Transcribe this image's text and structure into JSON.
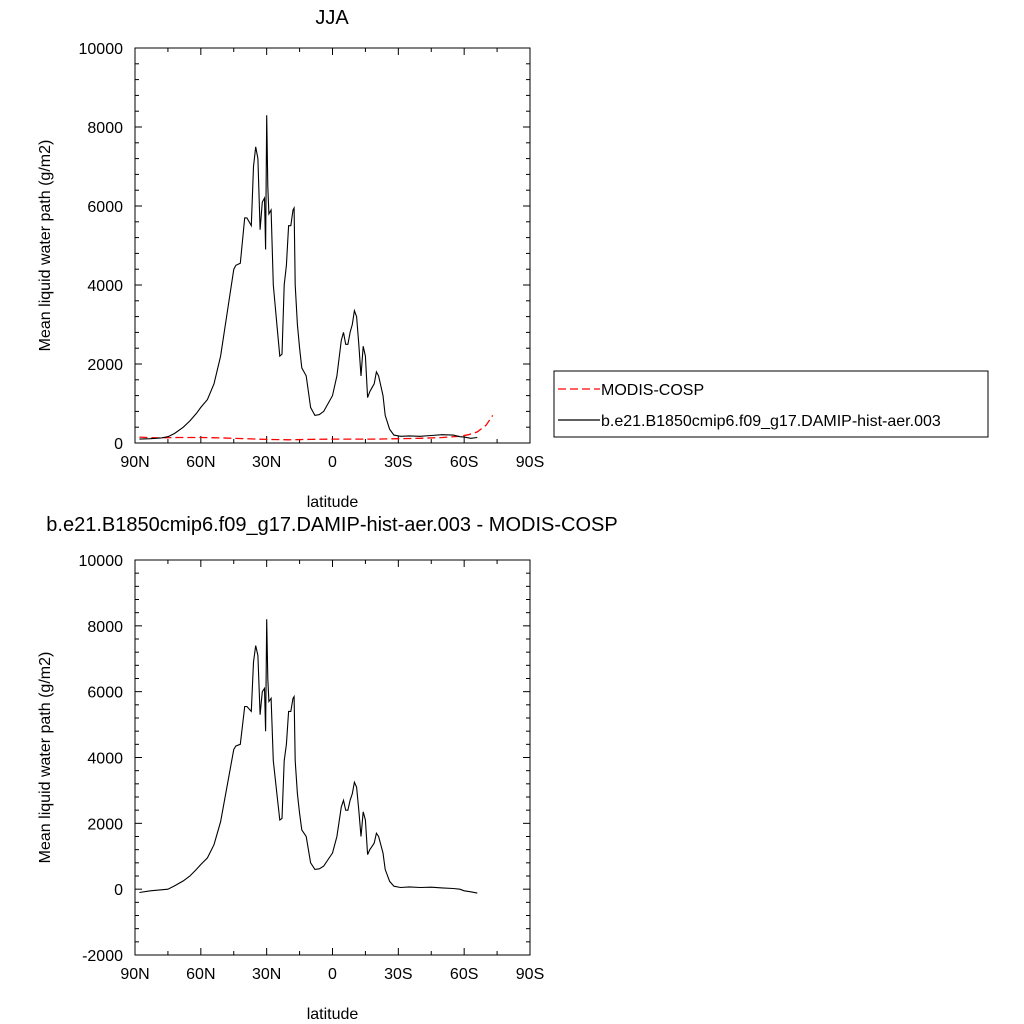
{
  "chart_data": [
    {
      "type": "line",
      "title": "JJA",
      "xlabel": "latitude",
      "ylabel": "Mean liquid water path (g/m2)",
      "xlim": [
        90,
        -90
      ],
      "ylim": [
        0,
        10000
      ],
      "x_ticks": [
        90,
        60,
        30,
        0,
        -30,
        -60,
        -90
      ],
      "x_tick_labels": [
        "90N",
        "60N",
        "30N",
        "0",
        "30S",
        "60S",
        "90S"
      ],
      "y_ticks": [
        0,
        2000,
        4000,
        6000,
        8000,
        10000
      ],
      "y_tick_labels": [
        "0",
        "2000",
        "4000",
        "6000",
        "8000",
        "10000"
      ],
      "grid": false,
      "legend": {
        "position": "right",
        "entries": [
          {
            "label": "MODIS-COSP",
            "color": "#ff0000",
            "dash": "dashed"
          },
          {
            "label": "b.e21.B1850cmip6.f09_g17.DAMIP-hist-aer.003",
            "color": "#000000",
            "dash": "solid"
          }
        ]
      },
      "series": [
        {
          "name": "MODIS-COSP",
          "color": "#ff0000",
          "dash": "dashed",
          "x": [
            88,
            80,
            70,
            60,
            50,
            40,
            30,
            20,
            10,
            0,
            -10,
            -20,
            -30,
            -40,
            -50,
            -58,
            -62,
            -66,
            -70,
            -73
          ],
          "y": [
            150,
            130,
            140,
            140,
            130,
            110,
            90,
            80,
            90,
            100,
            100,
            100,
            110,
            120,
            140,
            170,
            210,
            280,
            450,
            700
          ]
        },
        {
          "name": "b.e21.B1850cmip6.f09_g17.DAMIP-hist-aer.003",
          "color": "#000000",
          "dash": "solid",
          "x": [
            88,
            83,
            78,
            75,
            72,
            68,
            65,
            62,
            60,
            57,
            54,
            51,
            48,
            45,
            44,
            42,
            40,
            39,
            37,
            36,
            35,
            34,
            33,
            32,
            31,
            30.5,
            30,
            29.5,
            29,
            28,
            27,
            25,
            24,
            23,
            22,
            21,
            20,
            19,
            18,
            17.5,
            17,
            16,
            15,
            14,
            13,
            12,
            10,
            8,
            6,
            4,
            2,
            0,
            -2,
            -4,
            -5,
            -6,
            -7,
            -8,
            -9,
            -10,
            -11,
            -12,
            -13,
            -14,
            -15,
            -16,
            -17,
            -18,
            -19,
            -20,
            -21,
            -23,
            -24,
            -26,
            -28,
            -31,
            -35,
            -40,
            -45,
            -50,
            -55,
            -58,
            -60,
            -63,
            -66
          ],
          "y": [
            100,
            110,
            130,
            160,
            240,
            400,
            560,
            750,
            900,
            1100,
            1500,
            2200,
            3300,
            4400,
            4500,
            4550,
            5700,
            5700,
            5500,
            7000,
            7500,
            7200,
            5400,
            6100,
            6200,
            4900,
            8300,
            6500,
            5800,
            5900,
            4000,
            2800,
            2200,
            2250,
            4000,
            4500,
            5500,
            5500,
            5900,
            5950,
            4000,
            3000,
            2400,
            1900,
            1800,
            1700,
            900,
            700,
            720,
            800,
            1000,
            1200,
            1700,
            2600,
            2800,
            2500,
            2500,
            2800,
            3000,
            3350,
            3200,
            2500,
            1700,
            2450,
            2200,
            1150,
            1300,
            1400,
            1500,
            1800,
            1700,
            1200,
            700,
            350,
            200,
            170,
            180,
            170,
            190,
            210,
            200,
            160,
            150,
            120,
            140
          ]
        }
      ]
    },
    {
      "type": "line",
      "title": "b.e21.B1850cmip6.f09_g17.DAMIP-hist-aer.003 - MODIS-COSP",
      "xlabel": "latitude",
      "ylabel": "Mean liquid water path (g/m2)",
      "xlim": [
        90,
        -90
      ],
      "ylim": [
        -2000,
        10000
      ],
      "x_ticks": [
        90,
        60,
        30,
        0,
        -30,
        -60,
        -90
      ],
      "x_tick_labels": [
        "90N",
        "60N",
        "30N",
        "0",
        "30S",
        "60S",
        "90S"
      ],
      "y_ticks": [
        -2000,
        0,
        2000,
        4000,
        6000,
        8000,
        10000
      ],
      "y_tick_labels": [
        "-2000",
        "0",
        "2000",
        "4000",
        "6000",
        "8000",
        "10000"
      ],
      "grid": false,
      "series": [
        {
          "color": "#000000",
          "dash": "solid",
          "x": [
            88,
            83,
            78,
            75,
            72,
            68,
            65,
            62,
            60,
            57,
            54,
            51,
            48,
            45,
            44,
            42,
            40,
            39,
            37,
            36,
            35,
            34,
            33,
            32,
            31,
            30.5,
            30,
            29.5,
            29,
            28,
            27,
            25,
            24,
            23,
            22,
            21,
            20,
            19,
            18,
            17.5,
            17,
            16,
            15,
            14,
            13,
            12,
            10,
            8,
            6,
            4,
            2,
            0,
            -2,
            -4,
            -5,
            -6,
            -7,
            -8,
            -9,
            -10,
            -11,
            -12,
            -13,
            -14,
            -15,
            -16,
            -17,
            -18,
            -19,
            -20,
            -21,
            -23,
            -24,
            -26,
            -28,
            -31,
            -35,
            -40,
            -45,
            -50,
            -55,
            -58,
            -60,
            -63,
            -66
          ],
          "y": [
            -100,
            -50,
            -20,
            0,
            100,
            250,
            400,
            600,
            750,
            950,
            1350,
            2050,
            3150,
            4250,
            4350,
            4400,
            5550,
            5550,
            5400,
            6900,
            7400,
            7100,
            5300,
            6000,
            6100,
            4800,
            8200,
            6400,
            5700,
            5800,
            3900,
            2700,
            2100,
            2150,
            3900,
            4400,
            5400,
            5400,
            5800,
            5850,
            3900,
            2900,
            2300,
            1800,
            1700,
            1600,
            800,
            600,
            620,
            700,
            900,
            1100,
            1600,
            2500,
            2700,
            2400,
            2400,
            2700,
            2900,
            3250,
            3100,
            2400,
            1600,
            2350,
            2100,
            1050,
            1200,
            1300,
            1400,
            1700,
            1600,
            1100,
            600,
            240,
            90,
            50,
            70,
            50,
            60,
            40,
            20,
            0,
            -50,
            -80,
            -120
          ]
        }
      ]
    }
  ]
}
